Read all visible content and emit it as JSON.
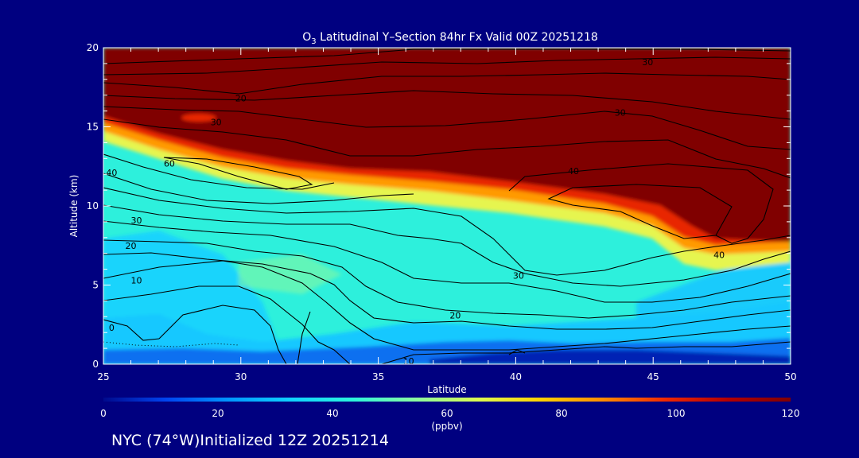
{
  "chart_data": {
    "type": "heatmap",
    "title_species": "O",
    "title_subscript": "3",
    "title_rest": " Latitudinal Y–Section 84hr  Fx Valid 00Z 20251218",
    "xlabel": "Latitude",
    "ylabel": "Altitude (km)",
    "xlim": [
      25,
      50
    ],
    "ylim": [
      0,
      20
    ],
    "x_ticks": [
      "25",
      "30",
      "35",
      "40",
      "45",
      "50"
    ],
    "y_ticks": [
      "0",
      "5",
      "10",
      "15",
      "20"
    ],
    "colorbar": {
      "label": "(ppbv)",
      "range": [
        0,
        120
      ],
      "ticks": [
        "0",
        "20",
        "40",
        "60",
        "80",
        "100",
        "120"
      ],
      "colors": [
        "#000a8c",
        "#0044f0",
        "#0096ff",
        "#10d2ff",
        "#2cf5dc",
        "#8cfaa0",
        "#dcfa50",
        "#ffd200",
        "#ff8c00",
        "#f02800",
        "#b40000",
        "#800000"
      ]
    },
    "tropopause_height_km": [
      {
        "lat": 25,
        "alt": 15.5
      },
      {
        "lat": 27,
        "alt": 14.1
      },
      {
        "lat": 30,
        "alt": 12.8
      },
      {
        "lat": 33,
        "alt": 11.6
      },
      {
        "lat": 36,
        "alt": 11.1
      },
      {
        "lat": 40,
        "alt": 10.4
      },
      {
        "lat": 43,
        "alt": 9.7
      },
      {
        "lat": 45,
        "alt": 9.1
      },
      {
        "lat": 46,
        "alt": 7.8
      },
      {
        "lat": 47.5,
        "alt": 7.5
      },
      {
        "lat": 50,
        "alt": 7.8
      }
    ],
    "contour_labels": [
      {
        "text": "20",
        "lat": 30.0,
        "alt": 16.8
      },
      {
        "text": "30",
        "lat": 29.1,
        "alt": 15.3
      },
      {
        "text": "30",
        "lat": 44.8,
        "alt": 19.1
      },
      {
        "text": "30",
        "lat": 43.8,
        "alt": 15.9
      },
      {
        "text": "60",
        "lat": 27.4,
        "alt": 12.7
      },
      {
        "text": "40",
        "lat": 25.3,
        "alt": 12.1
      },
      {
        "text": "40",
        "lat": 42.1,
        "alt": 12.2
      },
      {
        "text": "30",
        "lat": 26.2,
        "alt": 9.1
      },
      {
        "text": "20",
        "lat": 26.0,
        "alt": 7.5
      },
      {
        "text": "10",
        "lat": 26.2,
        "alt": 5.3
      },
      {
        "text": "0",
        "lat": 25.3,
        "alt": 2.3
      },
      {
        "text": "40",
        "lat": 47.4,
        "alt": 6.9
      },
      {
        "text": "30",
        "lat": 40.1,
        "alt": 5.6
      },
      {
        "text": "20",
        "lat": 37.8,
        "alt": 3.1
      },
      {
        "text": "10",
        "lat": 36.1,
        "alt": 0.2
      }
    ]
  },
  "footer": {
    "text": "NYC (74°W)Initialized 12Z 20251214"
  }
}
